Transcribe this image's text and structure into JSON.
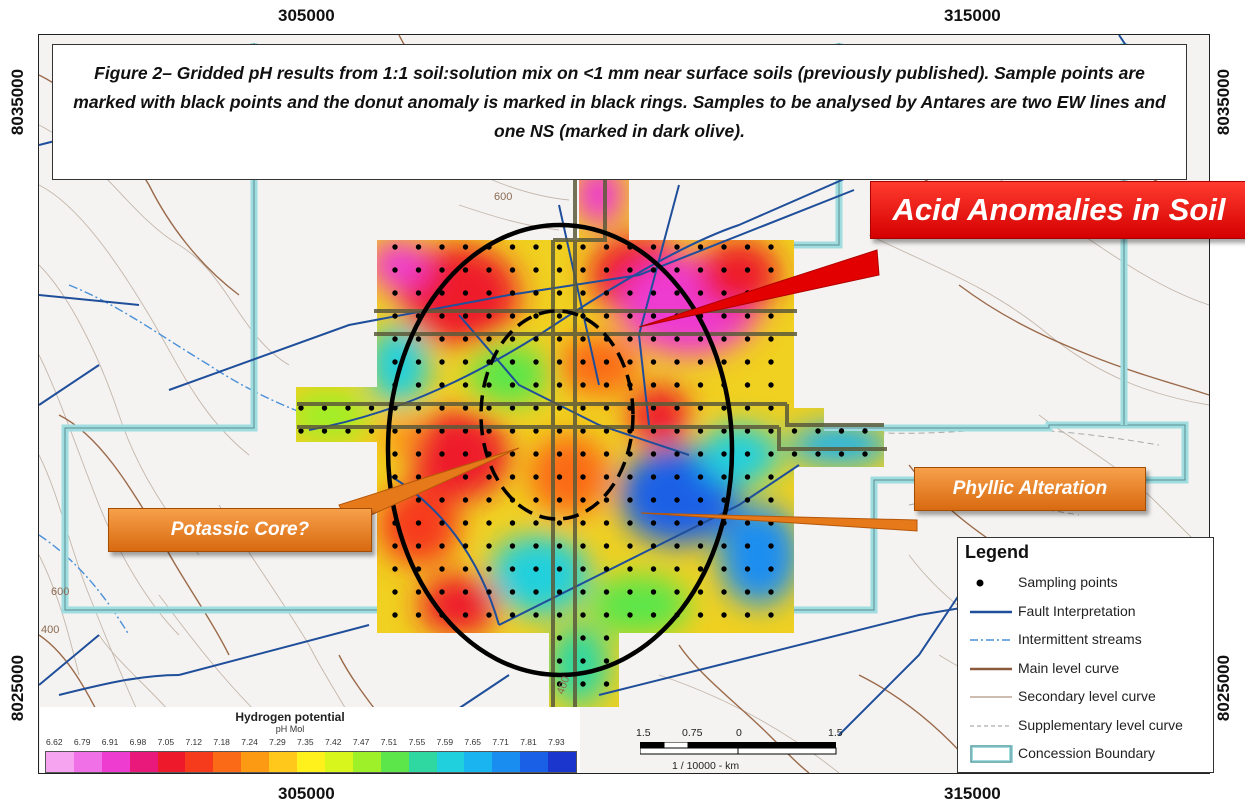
{
  "coords": {
    "top_left": "305000",
    "top_right": "315000",
    "bottom_left": "305000",
    "bottom_right": "315000",
    "left_top": "8035000",
    "left_bottom": "8025000",
    "right_top": "8035000",
    "right_bottom": "8025000"
  },
  "caption": "Figure 2– Gridded pH results from 1:1 soil:solution mix on <1 mm near surface soils (previously published).  Sample points are marked with black points and the donut anomaly is marked in black rings.  Samples to be analysed by Antares are two EW lines and one NS (marked in dark olive).",
  "callouts": {
    "acid": "Acid Anomalies in Soil",
    "phyllic": "Phyllic Alteration",
    "potassic": "Potassic Core?"
  },
  "contour_labels": {
    "label_600_top": "600",
    "label_600_left": "600",
    "label_400_left": "400",
    "label_400_bottom": "400"
  },
  "legend": {
    "title": "Legend",
    "items": [
      {
        "label": "Sampling points",
        "symbol": "dot",
        "color": "#000000"
      },
      {
        "label": "Fault Interpretation",
        "symbol": "line",
        "color": "#1f4e9a"
      },
      {
        "label": "Intermittent streams",
        "symbol": "dashdot",
        "color": "#4a90d9"
      },
      {
        "label": "Main level curve",
        "symbol": "line",
        "color": "#8b5a3c"
      },
      {
        "label": "Secondary level curve",
        "symbol": "thin",
        "color": "#9c7a62"
      },
      {
        "label": "Supplementary level curve",
        "symbol": "dashed",
        "color": "#999999"
      },
      {
        "label": "Concession Boundary",
        "symbol": "box",
        "color": "#9fdde0"
      }
    ]
  },
  "colorbar": {
    "title": "Hydrogen potential",
    "subtitle": "pH Mol",
    "ticks": [
      "6.62",
      "6.79",
      "6.91",
      "6.98",
      "7.05",
      "7.12",
      "7.18",
      "7.24",
      "7.29",
      "7.35",
      "7.42",
      "7.47",
      "7.51",
      "7.55",
      "7.59",
      "7.65",
      "7.71",
      "7.81",
      "7.93"
    ],
    "colors": [
      "#f6a3f0",
      "#f070e8",
      "#ee3bd0",
      "#e8197a",
      "#ee1a2c",
      "#f63a1c",
      "#fb6a16",
      "#fd9a14",
      "#ffc81a",
      "#fff21c",
      "#d8f51c",
      "#9ef028",
      "#5ce64a",
      "#2ed8a0",
      "#20d0dc",
      "#1ab4f0",
      "#1a8ef0",
      "#1a60e6",
      "#1a36cc"
    ]
  },
  "scalebar": {
    "labels": [
      "1.5",
      "0.75",
      "0",
      "1.5"
    ],
    "unit": "1 / 10000 - km"
  }
}
